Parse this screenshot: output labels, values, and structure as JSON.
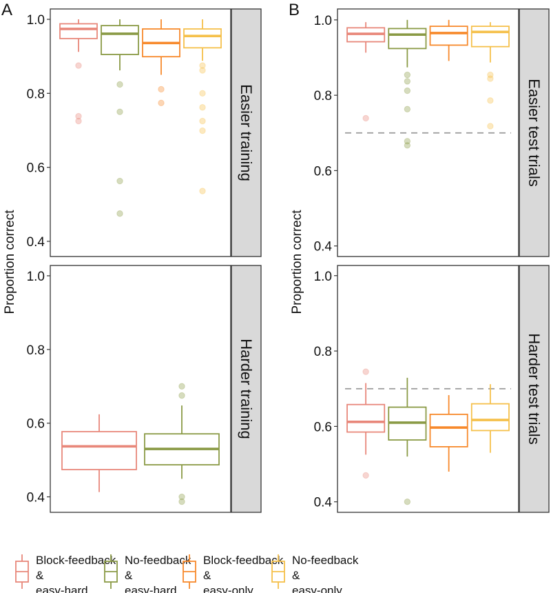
{
  "chart_data": {
    "type": "box",
    "ylabel": "Proportion correct",
    "yticks": [
      0.4,
      0.6,
      0.8,
      1.0
    ],
    "reference_line": 0.7,
    "groups": [
      {
        "name": "Block-feedback & easy-hard",
        "lines": [
          "Block-feedback",
          "&",
          "easy-hard"
        ],
        "color": "#E8877A"
      },
      {
        "name": "No-feedback & easy-hard",
        "lines": [
          "No-feedback",
          "&",
          "easy-hard"
        ],
        "color": "#8A9A45"
      },
      {
        "name": "Block-feedback & easy-only",
        "lines": [
          "Block-feedback",
          "&",
          "easy-only"
        ],
        "color": "#F7892B"
      },
      {
        "name": "No-feedback & easy-only",
        "lines": [
          "No-feedback",
          "&",
          "easy-only"
        ],
        "color": "#F5C04A"
      }
    ],
    "panels": [
      {
        "letter": "A",
        "strip": "Easier training",
        "ylim": [
          0.359,
          1.028
        ],
        "dashed": false,
        "boxes": [
          {
            "group": 0,
            "lower": 0.912,
            "q1": 0.948,
            "median": 0.974,
            "q3": 0.988,
            "upper": 1.0,
            "outliers": [
              0.875,
              0.738,
              0.725
            ]
          },
          {
            "group": 1,
            "lower": 0.862,
            "q1": 0.905,
            "median": 0.961,
            "q3": 0.983,
            "upper": 1.0,
            "outliers": [
              0.824,
              0.75,
              0.563,
              0.475
            ]
          },
          {
            "group": 2,
            "lower": 0.85,
            "q1": 0.899,
            "median": 0.936,
            "q3": 0.974,
            "upper": 1.0,
            "outliers": [
              0.811,
              0.774
            ]
          },
          {
            "group": 3,
            "lower": 0.888,
            "q1": 0.923,
            "median": 0.955,
            "q3": 0.974,
            "upper": 1.0,
            "outliers": [
              0.875,
              0.862,
              0.8,
              0.762,
              0.725,
              0.699,
              0.536
            ]
          }
        ]
      },
      {
        "letter": "B",
        "strip": "Easier test trials",
        "ylim": [
          0.372,
          1.029
        ],
        "dashed": true,
        "boxes": [
          {
            "group": 0,
            "lower": 0.913,
            "q1": 0.942,
            "median": 0.963,
            "q3": 0.979,
            "upper": 0.994,
            "outliers": [
              0.739
            ]
          },
          {
            "group": 1,
            "lower": 0.874,
            "q1": 0.924,
            "median": 0.961,
            "q3": 0.977,
            "upper": 1.0,
            "outliers": [
              0.854,
              0.837,
              0.812,
              0.763,
              0.678,
              0.667
            ]
          },
          {
            "group": 2,
            "lower": 0.891,
            "q1": 0.933,
            "median": 0.965,
            "q3": 0.983,
            "upper": 1.0,
            "outliers": []
          },
          {
            "group": 3,
            "lower": 0.887,
            "q1": 0.929,
            "median": 0.968,
            "q3": 0.983,
            "upper": 0.994,
            "outliers": [
              0.854,
              0.844,
              0.786,
              0.718
            ]
          }
        ]
      },
      {
        "letter": "",
        "strip": "Harder training",
        "ylim": [
          0.358,
          1.028
        ],
        "dashed": false,
        "boxes": [
          {
            "group": 0,
            "lower": 0.413,
            "q1": 0.474,
            "median": 0.537,
            "q3": 0.577,
            "upper": 0.624,
            "outliers": []
          },
          {
            "group": 1,
            "lower": 0.449,
            "q1": 0.487,
            "median": 0.53,
            "q3": 0.571,
            "upper": 0.648,
            "outliers": [
              0.7,
              0.675,
              0.4,
              0.387
            ]
          }
        ]
      },
      {
        "letter": "",
        "strip": "Harder test trials",
        "ylim": [
          0.372,
          1.027
        ],
        "dashed": true,
        "boxes": [
          {
            "group": 0,
            "lower": 0.525,
            "q1": 0.585,
            "median": 0.612,
            "q3": 0.658,
            "upper": 0.715,
            "outliers": [
              0.745,
              0.47
            ]
          },
          {
            "group": 1,
            "lower": 0.52,
            "q1": 0.564,
            "median": 0.61,
            "q3": 0.651,
            "upper": 0.729,
            "outliers": [
              0.4
            ]
          },
          {
            "group": 2,
            "lower": 0.48,
            "q1": 0.546,
            "median": 0.597,
            "q3": 0.632,
            "upper": 0.683,
            "outliers": []
          },
          {
            "group": 3,
            "lower": 0.53,
            "q1": 0.589,
            "median": 0.617,
            "q3": 0.66,
            "upper": 0.712,
            "outliers": []
          }
        ]
      }
    ]
  }
}
